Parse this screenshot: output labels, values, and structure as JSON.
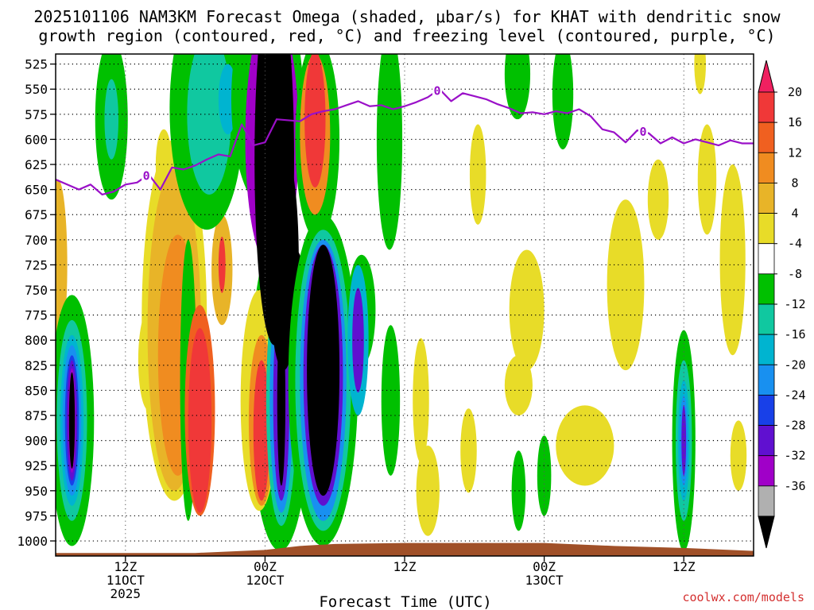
{
  "chart_data": {
    "type": "heatmap",
    "title_lines": [
      "2025101106 NAM3KM Forecast Omega (shaded, μbar/s) for KHAT with dendritic snow",
      "growth region (contoured, red, °C) and freezing level (contoured, purple, °C)"
    ],
    "xlabel": "Forecast Time (UTC)",
    "credit": "coolwx.com/models",
    "y_axis": {
      "ticks": [
        525,
        550,
        575,
        600,
        625,
        650,
        675,
        700,
        725,
        750,
        775,
        800,
        825,
        850,
        875,
        900,
        925,
        950,
        975,
        1000
      ],
      "range": [
        515,
        1015
      ],
      "units": "hPa"
    },
    "x_axis": {
      "range_hours": [
        6,
        66
      ],
      "ticks": [
        {
          "hour": 12,
          "lines": [
            "12Z",
            "11OCT",
            "2025"
          ]
        },
        {
          "hour": 24,
          "lines": [
            "00Z",
            "12OCT"
          ]
        },
        {
          "hour": 36,
          "lines": [
            "12Z"
          ]
        },
        {
          "hour": 48,
          "lines": [
            "00Z",
            "13OCT"
          ]
        },
        {
          "hour": 60,
          "lines": [
            "12Z"
          ]
        }
      ]
    },
    "colorbar": {
      "labels": [
        "20",
        "16",
        "12",
        "8",
        "4",
        "-4",
        "-8",
        "-12",
        "-16",
        "-20",
        "-24",
        "-28",
        "-32",
        "-36"
      ],
      "levels": [
        20,
        16,
        12,
        8,
        4,
        -4,
        -8,
        -12,
        -16,
        -20,
        -24,
        -28,
        -32,
        -36
      ],
      "colors": [
        "#f02060",
        "#f03838",
        "#f06020",
        "#f08c20",
        "#e8b428",
        "#e8dc28",
        "#ffffff",
        "#00c000",
        "#10c8a0",
        "#00b4d0",
        "#1890f0",
        "#1840e8",
        "#6010d0",
        "#a000c8",
        "#b0b0b0",
        "#000000"
      ]
    },
    "freezing_level": {
      "label": "0",
      "color": "#9a10c8",
      "hours": [
        6,
        8,
        9,
        10,
        11,
        12,
        13,
        14,
        15,
        16,
        17,
        18,
        19,
        20,
        21,
        22,
        23,
        24,
        25,
        26,
        27,
        28,
        29,
        30,
        31,
        32,
        33,
        34,
        35,
        36,
        37,
        38,
        39,
        40,
        41,
        42,
        43,
        44,
        45,
        46,
        47,
        48,
        49,
        50,
        51,
        52,
        53,
        54,
        55,
        56,
        57,
        58,
        59,
        60,
        61,
        62,
        63,
        64,
        65,
        66
      ],
      "pressure": [
        640,
        650,
        645,
        655,
        652,
        645,
        643,
        635,
        650,
        628,
        630,
        626,
        620,
        615,
        617,
        585,
        606,
        603,
        580,
        581,
        582,
        575,
        572,
        570,
        566,
        562,
        567,
        566,
        570,
        567,
        563,
        558,
        550,
        562,
        554,
        557,
        560,
        565,
        569,
        574,
        573,
        575,
        572,
        574,
        570,
        577,
        590,
        593,
        603,
        591,
        594,
        604,
        598,
        604,
        600,
        603,
        606,
        601,
        604,
        604
      ],
      "label_hours": [
        13.8,
        38.8,
        56.5
      ]
    },
    "terrain": {
      "color": "#a05028",
      "hours": [
        6,
        12,
        18,
        24,
        27,
        30,
        36,
        42,
        48,
        54,
        60,
        64,
        66
      ],
      "pressure": [
        1012,
        1012,
        1012,
        1009,
        1005,
        1003,
        1002,
        1002,
        1002,
        1005,
        1007,
        1009,
        1010
      ]
    },
    "omega_areas": [
      {
        "level": 8,
        "hour": 6.2,
        "p": 725,
        "dh": 0.8,
        "dp": 85
      },
      {
        "level": -8,
        "hour": 7.4,
        "p": 880,
        "dh": 1.9,
        "dp": 125
      },
      {
        "level": -12,
        "hour": 7.4,
        "p": 880,
        "dh": 1.3,
        "dp": 100
      },
      {
        "level": -16,
        "hour": 7.4,
        "p": 880,
        "dh": 1.0,
        "dp": 85
      },
      {
        "level": -20,
        "hour": 7.4,
        "p": 880,
        "dh": 0.8,
        "dp": 75
      },
      {
        "level": -24,
        "hour": 7.4,
        "p": 880,
        "dh": 0.6,
        "dp": 65
      },
      {
        "level": -28,
        "hour": 7.4,
        "p": 880,
        "dh": 0.45,
        "dp": 60
      },
      {
        "level": -32,
        "hour": 7.4,
        "p": 880,
        "dh": 0.3,
        "dp": 52
      },
      {
        "level": -36,
        "hour": 7.4,
        "p": 880,
        "dh": 0.25,
        "dp": 48
      },
      {
        "level": -8,
        "hour": 10.8,
        "p": 580,
        "dh": 1.4,
        "dp": 80
      },
      {
        "level": -12,
        "hour": 10.8,
        "p": 580,
        "dh": 0.6,
        "dp": 40
      },
      {
        "level": 4,
        "hour": 15.3,
        "p": 625,
        "dh": 0.7,
        "dp": 35
      },
      {
        "level": 4,
        "hour": 14.0,
        "p": 820,
        "dh": 0.9,
        "dp": 50
      },
      {
        "level": 4,
        "hour": 16.2,
        "p": 780,
        "dh": 2.8,
        "dp": 180
      },
      {
        "level": 8,
        "hour": 16.2,
        "p": 790,
        "dh": 2.3,
        "dp": 160
      },
      {
        "level": 12,
        "hour": 16.5,
        "p": 815,
        "dh": 1.7,
        "dp": 120
      },
      {
        "level": -8,
        "hour": 17.4,
        "p": 840,
        "dh": 0.7,
        "dp": 140
      },
      {
        "level": 16,
        "hour": 18.4,
        "p": 870,
        "dh": 1.3,
        "dp": 105
      },
      {
        "level": 20,
        "hour": 18.4,
        "p": 880,
        "dh": 1.0,
        "dp": 92
      },
      {
        "level": 8,
        "hour": 20.3,
        "p": 730,
        "dh": 0.9,
        "dp": 55
      },
      {
        "level": 20,
        "hour": 20.3,
        "p": 725,
        "dh": 0.3,
        "dp": 28
      },
      {
        "level": -8,
        "hour": 19.0,
        "p": 570,
        "dh": 3.2,
        "dp": 120
      },
      {
        "level": -12,
        "hour": 19.2,
        "p": 575,
        "dh": 1.9,
        "dp": 80
      },
      {
        "level": -16,
        "hour": 20.8,
        "p": 560,
        "dh": 0.8,
        "dp": 35
      },
      {
        "level": -8,
        "hour": 25.3,
        "p": 850,
        "dh": 2.6,
        "dp": 160
      },
      {
        "level": 4,
        "hour": 23.5,
        "p": 860,
        "dh": 1.6,
        "dp": 110
      },
      {
        "level": 12,
        "hour": 23.7,
        "p": 880,
        "dh": 1.1,
        "dp": 85
      },
      {
        "level": 20,
        "hour": 23.7,
        "p": 890,
        "dh": 0.7,
        "dp": 70
      },
      {
        "level": -12,
        "hour": 25.4,
        "p": 860,
        "dh": 1.3,
        "dp": 125
      },
      {
        "level": -20,
        "hour": 25.4,
        "p": 860,
        "dh": 1.0,
        "dp": 112
      },
      {
        "level": -28,
        "hour": 25.4,
        "p": 860,
        "dh": 0.7,
        "dp": 100
      },
      {
        "level": -36,
        "hour": 25.4,
        "p": 860,
        "dh": 0.35,
        "dp": 85
      },
      {
        "level": -8,
        "hour": 24.2,
        "p": 560,
        "dh": 3.1,
        "dp": 110
      },
      {
        "level": -32,
        "hour": 24.6,
        "p": 600,
        "dh": 2.3,
        "dp": 130
      },
      {
        "level": -36,
        "hour": 24.8,
        "p": 620,
        "dh": 1.7,
        "dp": 185
      },
      {
        "level": -36,
        "hour": 25.6,
        "p": 720,
        "dh": 1.3,
        "dp": 110
      },
      {
        "level": -36,
        "hour": 26.6,
        "p": 770,
        "dh": 1.0,
        "dp": 60
      },
      {
        "level": -8,
        "hour": 28.5,
        "p": 600,
        "dh": 1.9,
        "dp": 100
      },
      {
        "level": 12,
        "hour": 28.3,
        "p": 595,
        "dh": 1.3,
        "dp": 80
      },
      {
        "level": 20,
        "hour": 28.3,
        "p": 580,
        "dh": 0.9,
        "dp": 68
      },
      {
        "level": -8,
        "hour": 29.0,
        "p": 840,
        "dh": 3.0,
        "dp": 165
      },
      {
        "level": -12,
        "hour": 29.0,
        "p": 840,
        "dh": 2.4,
        "dp": 150
      },
      {
        "level": -20,
        "hour": 29.0,
        "p": 840,
        "dh": 2.0,
        "dp": 140
      },
      {
        "level": -28,
        "hour": 29.0,
        "p": 835,
        "dh": 1.7,
        "dp": 130
      },
      {
        "level": -36,
        "hour": 29.0,
        "p": 830,
        "dh": 1.4,
        "dp": 125
      },
      {
        "level": -8,
        "hour": 32.3,
        "p": 770,
        "dh": 1.2,
        "dp": 55
      },
      {
        "level": -16,
        "hour": 32.0,
        "p": 800,
        "dh": 0.9,
        "dp": 75
      },
      {
        "level": -28,
        "hour": 32.0,
        "p": 800,
        "dh": 0.5,
        "dp": 52
      },
      {
        "level": -8,
        "hour": 34.7,
        "p": 600,
        "dh": 1.1,
        "dp": 110
      },
      {
        "level": -8,
        "hour": 34.8,
        "p": 860,
        "dh": 0.8,
        "dp": 75
      },
      {
        "level": 4,
        "hour": 37.4,
        "p": 860,
        "dh": 0.7,
        "dp": 62
      },
      {
        "level": 4,
        "hour": 38.0,
        "p": 950,
        "dh": 1.0,
        "dp": 45
      },
      {
        "level": 4,
        "hour": 41.5,
        "p": 910,
        "dh": 0.7,
        "dp": 42
      },
      {
        "level": 4,
        "hour": 45.8,
        "p": 845,
        "dh": 1.2,
        "dp": 30
      },
      {
        "level": 4,
        "hour": 46.5,
        "p": 770,
        "dh": 1.5,
        "dp": 60
      },
      {
        "level": 4,
        "hour": 42.3,
        "p": 635,
        "dh": 0.7,
        "dp": 50
      },
      {
        "level": -8,
        "hour": 45.7,
        "p": 535,
        "dh": 1.1,
        "dp": 45
      },
      {
        "level": -8,
        "hour": 49.6,
        "p": 555,
        "dh": 0.9,
        "dp": 55
      },
      {
        "level": -8,
        "hour": 45.8,
        "p": 950,
        "dh": 0.6,
        "dp": 40
      },
      {
        "level": -8,
        "hour": 48.0,
        "p": 935,
        "dh": 0.6,
        "dp": 40
      },
      {
        "level": 4,
        "hour": 51.5,
        "p": 905,
        "dh": 2.5,
        "dp": 40
      },
      {
        "level": 4,
        "hour": 55.0,
        "p": 745,
        "dh": 1.6,
        "dp": 85
      },
      {
        "level": 4,
        "hour": 57.8,
        "p": 660,
        "dh": 0.9,
        "dp": 40
      },
      {
        "level": 4,
        "hour": 62.0,
        "p": 640,
        "dh": 0.8,
        "dp": 55
      },
      {
        "level": 4,
        "hour": 64.2,
        "p": 720,
        "dh": 1.1,
        "dp": 95
      },
      {
        "level": 4,
        "hour": 61.4,
        "p": 525,
        "dh": 0.5,
        "dp": 30
      },
      {
        "level": 4,
        "hour": 64.7,
        "p": 915,
        "dh": 0.7,
        "dp": 35
      },
      {
        "level": -8,
        "hour": 60.0,
        "p": 900,
        "dh": 1.0,
        "dp": 110
      },
      {
        "level": -12,
        "hour": 60.0,
        "p": 900,
        "dh": 0.7,
        "dp": 80
      },
      {
        "level": -16,
        "hour": 60.0,
        "p": 900,
        "dh": 0.5,
        "dp": 60
      },
      {
        "level": -20,
        "hour": 60.0,
        "p": 900,
        "dh": 0.35,
        "dp": 45
      },
      {
        "level": -28,
        "hour": 60.0,
        "p": 900,
        "dh": 0.2,
        "dp": 35
      }
    ]
  }
}
